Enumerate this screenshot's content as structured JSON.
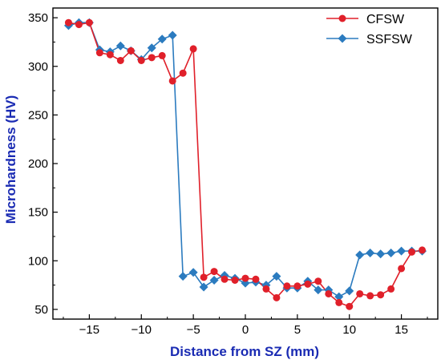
{
  "chart_data": {
    "type": "line",
    "title": "",
    "xlabel": "Distance from SZ (mm)",
    "ylabel": "Microhardness (HV)",
    "xlim": [
      -18.5,
      18.5
    ],
    "ylim": [
      40,
      360
    ],
    "xticks": [
      -15,
      -10,
      -5,
      0,
      5,
      10,
      15
    ],
    "yticks": [
      50,
      100,
      150,
      200,
      250,
      300,
      350
    ],
    "xtick_labels": [
      "−15",
      "−10",
      "−5",
      "0",
      "5",
      "10",
      "15"
    ],
    "ytick_labels": [
      "50",
      "100",
      "150",
      "200",
      "250",
      "300",
      "350"
    ],
    "grid": false,
    "legend_position": "top-right",
    "x": [
      -17,
      -16,
      -15,
      -14,
      -13,
      -12,
      -11,
      -10,
      -9,
      -8,
      -7,
      -6,
      -5,
      -4,
      -3,
      -2,
      -1,
      0,
      1,
      2,
      3,
      4,
      5,
      6,
      7,
      8,
      9,
      10,
      11,
      12,
      13,
      14,
      15,
      16,
      17
    ],
    "series": [
      {
        "name": "CFSW",
        "color": "#e0202a",
        "marker": "circle",
        "values": [
          345,
          343,
          345,
          314,
          312,
          306,
          316,
          306,
          309,
          311,
          285,
          293,
          318,
          83,
          89,
          81,
          80,
          82,
          81,
          71,
          62,
          74,
          74,
          76,
          79,
          66,
          57,
          53,
          66,
          64,
          65,
          71,
          92,
          109,
          111
        ]
      },
      {
        "name": "SSFSW",
        "color": "#2b7bbf",
        "marker": "diamond",
        "values": [
          342,
          345,
          345,
          317,
          315,
          321,
          316,
          307,
          319,
          328,
          332,
          84,
          88,
          73,
          80,
          85,
          82,
          77,
          78,
          75,
          84,
          72,
          72,
          79,
          70,
          70,
          63,
          69,
          106,
          108,
          107,
          108,
          110,
          110,
          110
        ]
      }
    ]
  }
}
